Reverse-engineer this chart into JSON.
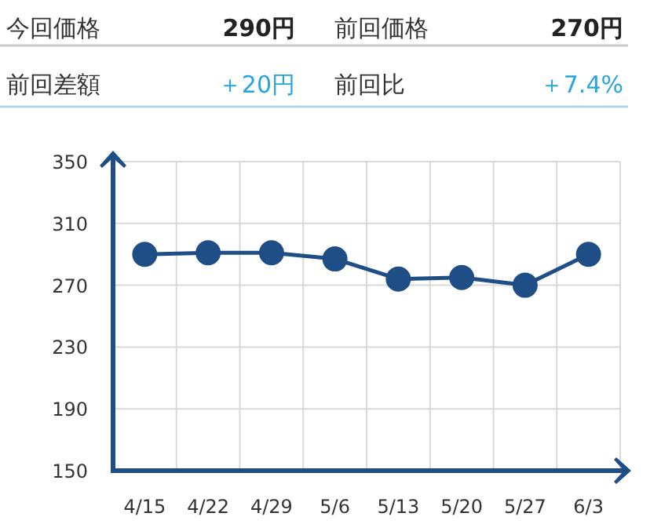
{
  "chart_data": [
    {
      "type": "other",
      "annotations": [
        "今回価格",
        "290円",
        "前回価格",
        "270円",
        "前回差額",
        "＋20円",
        "前回比",
        "＋7.4%"
      ]
    },
    {
      "type": "line",
      "categories": [
        "4/15",
        "4/22",
        "4/29",
        "5/6",
        "5/13",
        "5/20",
        "5/27",
        "6/3"
      ],
      "series": [
        {
          "color": "#1f4e86",
          "values": [
            290,
            291,
            291,
            287,
            274,
            275,
            270,
            290
          ]
        }
      ],
      "ylim": [
        150,
        350
      ],
      "yticks": [
        150,
        190,
        230,
        270,
        310,
        350
      ],
      "grid": true,
      "marker": "circle",
      "line_style": "solid"
    }
  ]
}
